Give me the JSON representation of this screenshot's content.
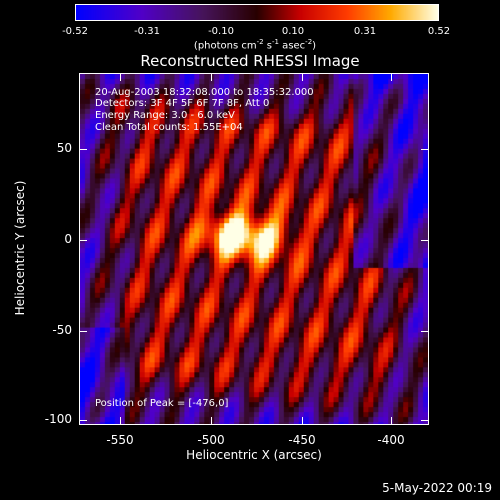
{
  "colorbar": {
    "tick_labels": [
      "-0.52",
      "-0.31",
      "-0.10",
      "0.10",
      "0.31",
      "0.52"
    ],
    "range": [
      -0.52,
      0.52
    ],
    "unit_label": "(photons cm",
    "unit_exp1": "-2",
    "unit_mid": " s",
    "unit_exp2": "-1",
    "unit_mid2": " asec",
    "unit_exp3": "-2",
    "unit_end": ")"
  },
  "title": "Reconstructed RHESSI Image",
  "info": {
    "line1": "20-Aug-2003 18:32:08.000 to 18:35:32.000",
    "line2": "Detectors: 3F 4F 5F 6F 7F 8F, Att 0",
    "line3": "Energy Range: 3.0 - 6.0 keV",
    "line4": "Clean     Total counts: 1.55E+04"
  },
  "peak_label": "Position of Peak = [-476,0]",
  "axes": {
    "xlabel": "Heliocentric X (arcsec)",
    "ylabel": "Heliocentric Y (arcsec)",
    "x_ticks": [
      "-550",
      "-500",
      "-450",
      "-400"
    ],
    "y_ticks": [
      "50",
      "0",
      "-50",
      "-100"
    ],
    "xlim": [
      -572,
      -380
    ],
    "ylim": [
      -102,
      90
    ]
  },
  "timestamp": "5-May-2022 00:19",
  "colors": {
    "background": "#000000",
    "foreground": "#ffffff"
  }
}
